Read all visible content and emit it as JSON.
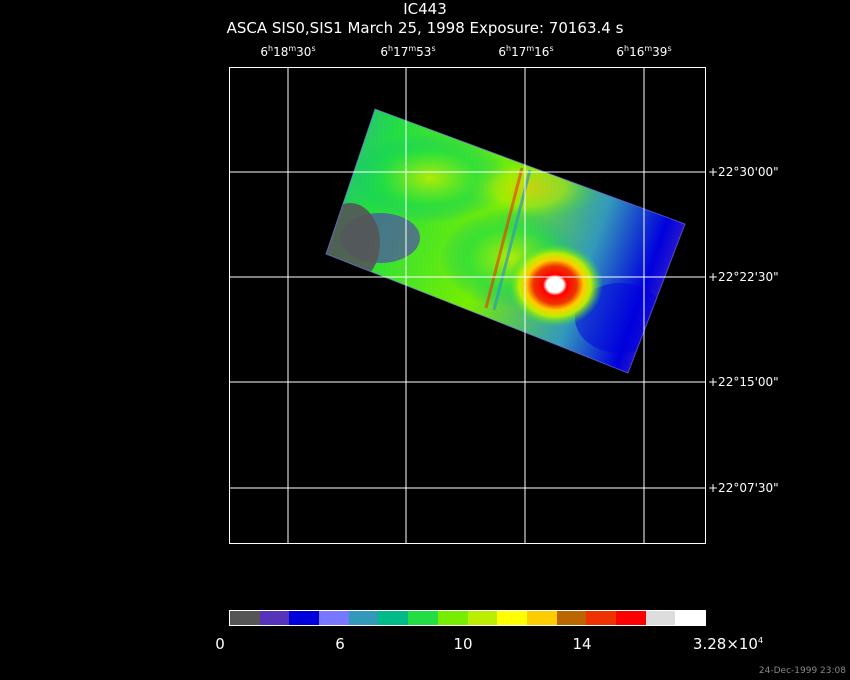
{
  "header": {
    "title": "IC443",
    "subtitle": "ASCA SIS0,SIS1 March 25, 1998 Exposure: 70163.4 s"
  },
  "axes": {
    "ra_labels": [
      {
        "h": "6",
        "m": "18",
        "s": "30"
      },
      {
        "h": "6",
        "m": "17",
        "s": "53"
      },
      {
        "h": "6",
        "m": "17",
        "s": "16"
      },
      {
        "h": "6",
        "m": "16",
        "s": "39"
      }
    ],
    "dec_labels": [
      "+22°30'00\"",
      "+22°22'30\"",
      "+22°15'00\"",
      "+22°07'30\""
    ]
  },
  "colorbar": {
    "labels": [
      "0",
      "6",
      "10",
      "14"
    ],
    "max_mantissa": "3.28×10",
    "max_exp": "4",
    "colors": [
      "#555555",
      "#5533bb",
      "#0000dd",
      "#7777ff",
      "#3399bb",
      "#00bb88",
      "#22dd44",
      "#77ee00",
      "#bbee00",
      "#ffff00",
      "#ffcc00",
      "#bb6600",
      "#ee3300",
      "#ff0000",
      "#dddddd",
      "#ffffff"
    ]
  },
  "footer": {
    "timestamp": "24-Dec-1999 23:08"
  }
}
